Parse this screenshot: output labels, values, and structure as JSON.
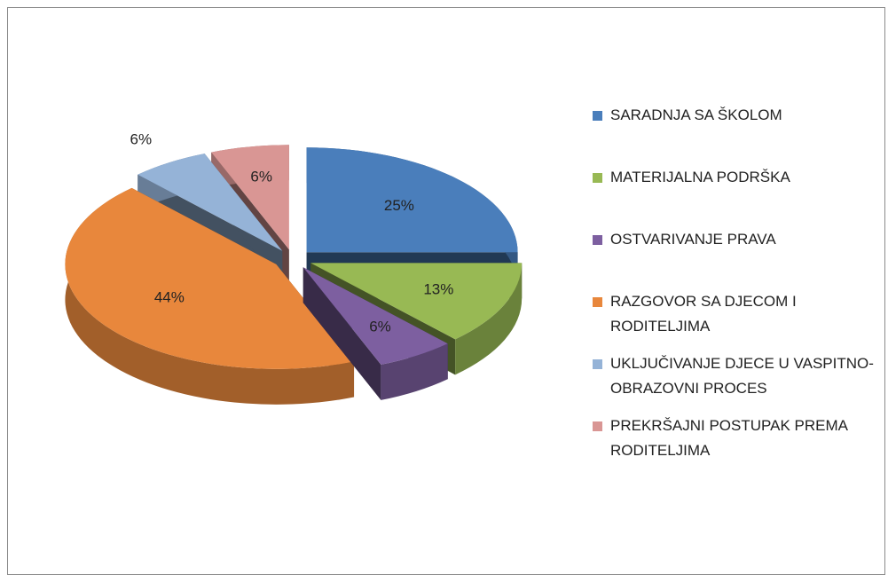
{
  "chart_data": {
    "type": "pie3d",
    "categories": [
      "SARADNJA SA ŠKOLOM",
      "MATERIJALNA PODRŠKA",
      "OSTVARIVANJE PRAVA",
      "RAZGOVOR SA DJECOM I RODITELJIMA",
      "UKLJUČIVANJE DJECE U VASPITNO-OBRAZOVNI PROCES",
      "PREKRŠAJNI POSTUPAK PREMA RODITELJIMA"
    ],
    "values": [
      25,
      13,
      6,
      44,
      6,
      6
    ],
    "value_labels": [
      "25%",
      "13%",
      "6%",
      "44%",
      "6%",
      "6%"
    ],
    "colors": [
      "#4a7ebb",
      "#98b954",
      "#7d5fa0",
      "#e8873c",
      "#95b3d7",
      "#d99694"
    ],
    "legend": "right"
  }
}
